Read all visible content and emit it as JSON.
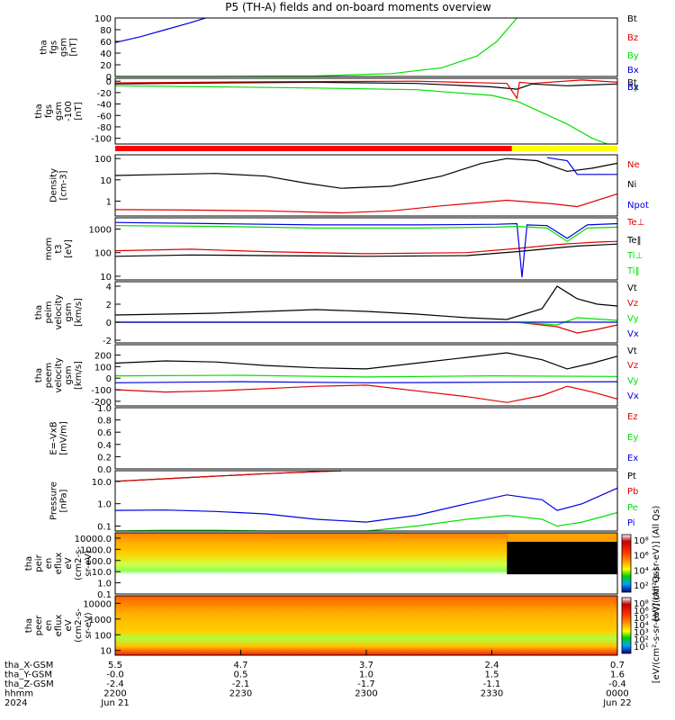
{
  "title": "P5 (TH-A) fields and on-board moments overview",
  "colors": {
    "black": "#000000",
    "red": "#e00000",
    "green": "#00e000",
    "blue": "#0000e0",
    "yellow": "#ffff00",
    "quality_red": "#ff0000"
  },
  "chart_data": [
    {
      "type": "line",
      "id": "fgs_gsm_top",
      "ylabel": [
        "tha",
        "fgs",
        "gsm",
        "[nT]"
      ],
      "ylim": [
        0,
        100
      ],
      "yticks": [
        "100",
        "80",
        "60",
        "40",
        "20",
        "0"
      ],
      "legend": [
        "Bt",
        "Bz",
        "By",
        "Bx"
      ],
      "series": [
        {
          "name": "Bt",
          "color": "black",
          "x": [
            0
          ],
          "y": [
            -2
          ]
        },
        {
          "name": "By",
          "color": "green",
          "x": [
            0,
            0.2,
            0.4,
            0.55,
            0.65,
            0.72,
            0.76,
            0.8
          ],
          "y": [
            0,
            0,
            1,
            5,
            15,
            35,
            60,
            100
          ]
        },
        {
          "name": "Bx",
          "color": "blue",
          "x": [
            0,
            0.05,
            0.1,
            0.15,
            0.18
          ],
          "y": [
            58,
            68,
            80,
            92,
            100
          ]
        }
      ]
    },
    {
      "type": "line",
      "id": "fgs_gsm_bottom",
      "ylabel": [
        "tha",
        "fgs",
        "gsm",
        "-100",
        "[nT]"
      ],
      "ylim": [
        -110,
        5
      ],
      "yticks": [
        "0",
        "-20",
        "-40",
        "-60",
        "-80",
        "-100"
      ],
      "legend": [
        "Bt",
        "Bz",
        "By",
        "Bx"
      ],
      "series": [
        {
          "name": "Bt",
          "color": "black",
          "x": [
            0,
            0.2,
            0.4,
            0.6,
            0.75,
            0.8,
            0.83,
            0.9,
            1.0
          ],
          "y": [
            -5,
            -3,
            -2,
            -4,
            -10,
            -14,
            -5,
            -8,
            -5
          ]
        },
        {
          "name": "Bz",
          "color": "red",
          "x": [
            0,
            0.3,
            0.6,
            0.78,
            0.8,
            0.805,
            0.83,
            0.93,
            1.0
          ],
          "y": [
            -3,
            -1,
            0,
            -4,
            -30,
            -2,
            -4,
            2,
            -2
          ]
        },
        {
          "name": "By",
          "color": "green",
          "x": [
            0,
            0.2,
            0.4,
            0.6,
            0.75,
            0.8,
            0.85,
            0.9,
            0.95,
            0.98
          ],
          "y": [
            -8,
            -10,
            -12,
            -15,
            -25,
            -35,
            -55,
            -75,
            -100,
            -110
          ]
        },
        {
          "name": "Bx",
          "color": "blue",
          "x": [
            0
          ],
          "y": [
            -5
          ]
        }
      ]
    },
    {
      "type": "line",
      "id": "density",
      "log": true,
      "ylabel": [
        "Density",
        "[cm-3]"
      ],
      "ylim": [
        0.2,
        150
      ],
      "yticks": [
        "100",
        "10",
        "1"
      ],
      "legend": [
        "Ne",
        "Ni",
        "Npot"
      ],
      "series": [
        {
          "name": "Ne",
          "color": "red",
          "x": [
            0,
            0.15,
            0.3,
            0.45,
            0.55,
            0.65,
            0.78,
            0.87,
            0.92,
            1.0
          ],
          "y": [
            0.4,
            0.38,
            0.35,
            0.28,
            0.35,
            0.6,
            1.1,
            0.75,
            0.55,
            2.2
          ]
        },
        {
          "name": "Ni",
          "color": "black",
          "x": [
            0,
            0.1,
            0.2,
            0.3,
            0.38,
            0.45,
            0.55,
            0.65,
            0.73,
            0.78,
            0.84,
            0.9,
            0.95,
            1.0
          ],
          "y": [
            16,
            18,
            20,
            15,
            7,
            4,
            5,
            15,
            60,
            100,
            80,
            25,
            35,
            60
          ]
        },
        {
          "name": "Npot",
          "color": "blue",
          "x": [
            0.86,
            0.9,
            0.92,
            0.96,
            1.0
          ],
          "y": [
            110,
            80,
            18,
            18,
            18
          ]
        }
      ]
    },
    {
      "type": "line",
      "id": "temperature",
      "log": true,
      "ylabel": [
        "mom",
        "t3",
        "[eV]"
      ],
      "ylim": [
        7,
        3000
      ],
      "yticks": [
        "1000",
        "100",
        "10"
      ],
      "legend": [
        "Te⊥",
        "Te‖",
        "Ti⊥",
        "Ti‖"
      ],
      "series": [
        {
          "name": "Te⊥",
          "color": "red",
          "x": [
            0,
            0.15,
            0.3,
            0.5,
            0.7,
            0.8,
            0.88,
            0.92,
            0.96,
            1.0
          ],
          "y": [
            120,
            140,
            110,
            90,
            100,
            150,
            220,
            250,
            280,
            300
          ]
        },
        {
          "name": "Te‖",
          "color": "black",
          "x": [
            0,
            0.15,
            0.3,
            0.5,
            0.7,
            0.8,
            0.88,
            0.92,
            0.96,
            1.0
          ],
          "y": [
            70,
            80,
            75,
            70,
            75,
            110,
            160,
            190,
            210,
            230
          ]
        },
        {
          "name": "Ti⊥",
          "color": "blue",
          "x": [
            0,
            0.2,
            0.4,
            0.6,
            0.76,
            0.8,
            0.81,
            0.82,
            0.86,
            0.9,
            0.94,
            1.0
          ],
          "y": [
            1900,
            1700,
            1500,
            1500,
            1600,
            1700,
            9,
            1500,
            1400,
            400,
            1500,
            1700
          ]
        },
        {
          "name": "Ti‖",
          "color": "green",
          "x": [
            0,
            0.2,
            0.4,
            0.6,
            0.76,
            0.8,
            0.86,
            0.9,
            0.94,
            1.0
          ],
          "y": [
            1400,
            1300,
            1100,
            1100,
            1200,
            1300,
            1100,
            300,
            1100,
            1200
          ]
        }
      ]
    },
    {
      "type": "line",
      "id": "peim_velocity",
      "ylabel": [
        "tha",
        "peim",
        "velocity",
        "gsm",
        "[km/s]"
      ],
      "ylim": [
        -2.3,
        4.5
      ],
      "yticks": [
        "4",
        "2",
        "0",
        "-2"
      ],
      "legend": [
        "Vt",
        "Vz",
        "Vy",
        "Vx"
      ],
      "series": [
        {
          "name": "Vt",
          "color": "black",
          "x": [
            0,
            0.2,
            0.4,
            0.5,
            0.6,
            0.7,
            0.78,
            0.85,
            0.88,
            0.92,
            0.96,
            1.0
          ],
          "y": [
            0.8,
            1.0,
            1.4,
            1.2,
            0.9,
            0.5,
            0.3,
            1.5,
            4,
            2.6,
            2.0,
            1.8
          ]
        },
        {
          "name": "Vz",
          "color": "red",
          "x": [
            0,
            0.3,
            0.6,
            0.8,
            0.88,
            0.92,
            0.96,
            1.0
          ],
          "y": [
            0,
            0,
            0,
            0,
            -0.5,
            -1.2,
            -0.8,
            -0.3
          ]
        },
        {
          "name": "Vy",
          "color": "green",
          "x": [
            0,
            0.3,
            0.6,
            0.8,
            0.88,
            0.92,
            1.0
          ],
          "y": [
            0,
            0,
            0,
            0,
            -0.3,
            0.5,
            0.2
          ]
        },
        {
          "name": "Vx",
          "color": "blue",
          "x": [
            0,
            0.3,
            0.6,
            0.8,
            1.0
          ],
          "y": [
            0,
            0,
            0,
            0,
            0
          ]
        }
      ]
    },
    {
      "type": "line",
      "id": "peem_velocity",
      "ylabel": [
        "tha",
        "peem",
        "velocity",
        "gsm",
        "[km/s]"
      ],
      "ylim": [
        -240,
        290
      ],
      "yticks": [
        "200",
        "100",
        "0",
        "-100",
        "-200"
      ],
      "legend": [
        "Vt",
        "Vz",
        "Vy",
        "Vx"
      ],
      "series": [
        {
          "name": "Vt",
          "color": "black",
          "x": [
            0,
            0.1,
            0.2,
            0.3,
            0.4,
            0.5,
            0.6,
            0.7,
            0.78,
            0.85,
            0.9,
            0.95,
            1.0
          ],
          "y": [
            130,
            150,
            140,
            110,
            90,
            80,
            130,
            180,
            220,
            160,
            80,
            130,
            190
          ]
        },
        {
          "name": "Vz",
          "color": "red",
          "x": [
            0,
            0.1,
            0.2,
            0.3,
            0.4,
            0.5,
            0.6,
            0.7,
            0.78,
            0.85,
            0.9,
            0.95,
            1.0
          ],
          "y": [
            -100,
            -120,
            -110,
            -90,
            -70,
            -60,
            -110,
            -160,
            -210,
            -150,
            -70,
            -120,
            -180
          ]
        },
        {
          "name": "Vy",
          "color": "green",
          "x": [
            0,
            0.25,
            0.5,
            0.75,
            1.0
          ],
          "y": [
            20,
            25,
            10,
            20,
            15
          ]
        },
        {
          "name": "Vx",
          "color": "blue",
          "x": [
            0,
            0.25,
            0.5,
            0.75,
            1.0
          ],
          "y": [
            -40,
            -30,
            -40,
            -35,
            -30
          ]
        }
      ]
    },
    {
      "type": "line",
      "id": "e_vxb",
      "ylabel": [
        "E=-VxB",
        "[mV/m]"
      ],
      "ylim": [
        0,
        1
      ],
      "yticks": [
        "1.0",
        "0.8",
        "0.6",
        "0.4",
        "0.2",
        "0.0"
      ],
      "legend": [
        "Ez",
        "Ey",
        "Ex"
      ],
      "series": []
    },
    {
      "type": "line",
      "id": "pressure",
      "log": true,
      "ylabel": [
        "Pressure",
        "[nPa]"
      ],
      "ylim": [
        0.06,
        30
      ],
      "yticks": [
        "10.0",
        "1.0",
        "0.1"
      ],
      "legend": [
        "Pt",
        "Pb",
        "Pe",
        "Pi"
      ],
      "series": [
        {
          "name": "Pt",
          "color": "black",
          "x": [
            0,
            0.15,
            0.3,
            0.45
          ],
          "y": [
            10,
            15,
            22,
            30
          ]
        },
        {
          "name": "Pb",
          "color": "red",
          "x": [
            0,
            0.15,
            0.3,
            0.45
          ],
          "y": [
            10,
            15,
            22,
            30
          ]
        },
        {
          "name": "Pe",
          "color": "green",
          "x": [
            0,
            0.1,
            0.2,
            0.3,
            0.4,
            0.5,
            0.6,
            0.7,
            0.78,
            0.85,
            0.88,
            0.93,
            1.0
          ],
          "y": [
            0.06,
            0.065,
            0.065,
            0.06,
            0.055,
            0.06,
            0.1,
            0.2,
            0.3,
            0.2,
            0.1,
            0.15,
            0.4
          ]
        },
        {
          "name": "Pi",
          "color": "blue",
          "x": [
            0,
            0.1,
            0.2,
            0.3,
            0.4,
            0.5,
            0.6,
            0.7,
            0.78,
            0.85,
            0.88,
            0.93,
            1.0
          ],
          "y": [
            0.5,
            0.52,
            0.45,
            0.35,
            0.2,
            0.15,
            0.3,
            1.0,
            2.5,
            1.5,
            0.5,
            1.0,
            5
          ]
        }
      ]
    },
    {
      "type": "heatmap",
      "id": "peir_spec",
      "ylabel": [
        "tha",
        "peir",
        "en",
        "eflux",
        "eV",
        "(cm2-s-",
        "sr-eV)"
      ],
      "ylim": [
        0.1,
        30000
      ],
      "log": true,
      "yticks": [
        "10000.0",
        "1000.0",
        "100.0",
        "10.0",
        "1.0",
        "0.1"
      ],
      "colorbar_label": "[eV/(cm²-s-sr-eV)] (All Qs)",
      "colorbar_ticks": [
        "10⁸",
        "10⁶",
        "10⁴",
        "10²"
      ]
    },
    {
      "type": "heatmap",
      "id": "peer_spec",
      "ylabel": [
        "tha",
        "peer",
        "en",
        "eflux",
        "eV",
        "(cm2-s-",
        "sr-eV)"
      ],
      "ylim": [
        5,
        30000
      ],
      "log": true,
      "yticks": [
        "10000",
        "1000",
        "100",
        "10"
      ],
      "colorbar_label": "[eV/(cm²-s-sr-eV)] (All Qs)",
      "colorbar_ticks": [
        "10⁸",
        "10⁶",
        "10⁵",
        "10⁴",
        "10³",
        "10²",
        "10¹"
      ]
    }
  ],
  "ephemeris": {
    "labels": [
      "tha_X-GSM",
      "tha_Y-GSM",
      "tha_Z-GSM",
      "hhmm",
      "2024"
    ],
    "columns": [
      [
        "5.5",
        "-0.0",
        "-2.4",
        "2200",
        "Jun 21"
      ],
      [
        "4.7",
        "0.5",
        "-2.1",
        "2230",
        ""
      ],
      [
        "3.7",
        "1.0",
        "-1.7",
        "2300",
        ""
      ],
      [
        "2.4",
        "1.5",
        "-1.1",
        "2330",
        ""
      ],
      [
        "0.7",
        "1.6",
        "-0.4",
        "0000",
        "Jun 22"
      ]
    ]
  }
}
